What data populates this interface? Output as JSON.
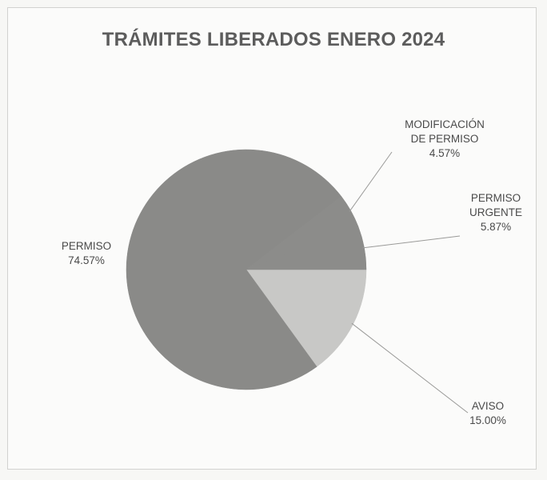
{
  "chart_data": {
    "type": "pie",
    "title": "TRÁMITES LIBERADOS ENERO 2024",
    "slices": [
      {
        "label": "AVISO",
        "value": 15.0,
        "value_text": "15.00%",
        "color": "#c8c8c6"
      },
      {
        "label": "PERMISO",
        "value": 74.57,
        "value_text": "74.57%",
        "color": "#8a8a88"
      },
      {
        "label": "MODIFICACIÓN DE PERMISO",
        "value": 4.57,
        "value_text": "4.57%",
        "color": "#8c8c8a"
      },
      {
        "label": "PERMISO URGENTE",
        "value": 5.87,
        "value_text": "5.87%",
        "color": "#8c8c8a"
      }
    ],
    "label_lines": {
      "AVISO": [
        "AVISO",
        "15.00%"
      ],
      "PERMISO": [
        "PERMISO",
        "74.57%"
      ],
      "MODIFICACIÓN DE PERMISO": [
        "MODIFICACIÓN",
        "DE PERMISO",
        "4.57%"
      ],
      "PERMISO URGENTE": [
        "PERMISO",
        "URGENTE",
        "5.87%"
      ]
    }
  }
}
